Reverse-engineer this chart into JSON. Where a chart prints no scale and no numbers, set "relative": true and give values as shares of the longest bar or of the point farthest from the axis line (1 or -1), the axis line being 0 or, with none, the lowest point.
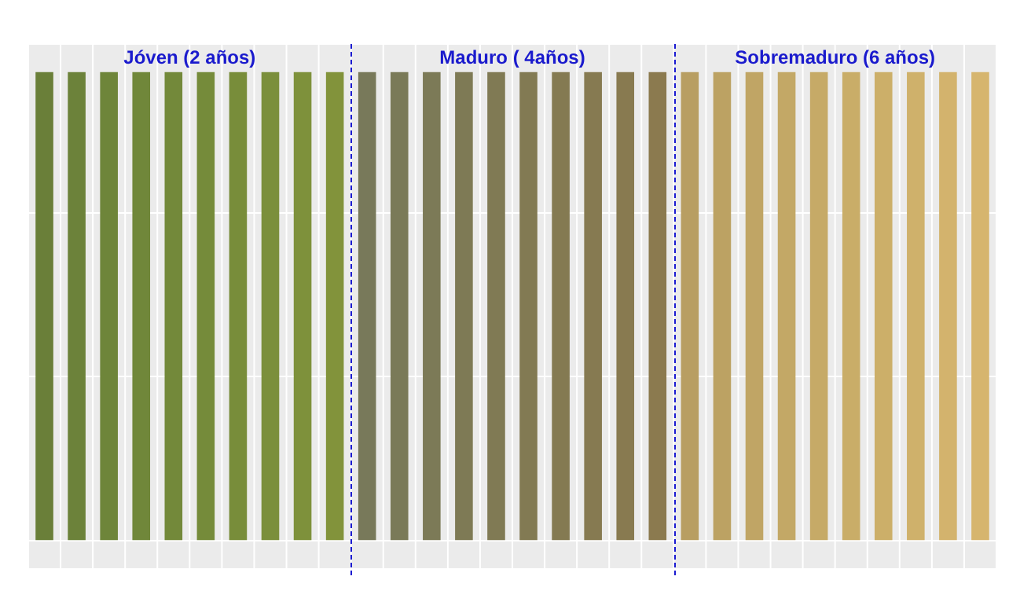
{
  "chart_data": {
    "type": "bar",
    "relative": true,
    "grid": true,
    "categories": [
      null,
      null,
      null,
      null,
      null,
      null,
      null,
      null,
      null,
      null,
      null,
      null,
      null,
      null,
      null,
      null,
      null,
      null,
      null,
      null,
      null,
      null,
      null,
      null,
      null,
      null,
      null,
      null,
      null,
      null
    ],
    "values": [
      1,
      1,
      1,
      1,
      1,
      1,
      1,
      1,
      1,
      1,
      1,
      1,
      1,
      1,
      1,
      1,
      1,
      1,
      1,
      1,
      1,
      1,
      1,
      1,
      1,
      1,
      1,
      1,
      1,
      1
    ],
    "colors": [
      "#6a7f39",
      "#6c823a",
      "#6e853a",
      "#70873a",
      "#73893a",
      "#758b3a",
      "#788d3a",
      "#7b8f3b",
      "#7e913b",
      "#82933b",
      "#78795a",
      "#7a7a58",
      "#7c7a57",
      "#7e7a55",
      "#807a54",
      "#827a53",
      "#847a52",
      "#867a51",
      "#887a50",
      "#8b7a4f",
      "#b89e62",
      "#bca263",
      "#c0a565",
      "#c3a866",
      "#c6aa67",
      "#c9ad68",
      "#ccaf69",
      "#cfb16b",
      "#d3b36d",
      "#d6b56e"
    ],
    "annotations": [
      "Jóven (2 años)",
      "Maduro ( 4años)",
      "Sobremaduro (6 años)"
    ]
  }
}
